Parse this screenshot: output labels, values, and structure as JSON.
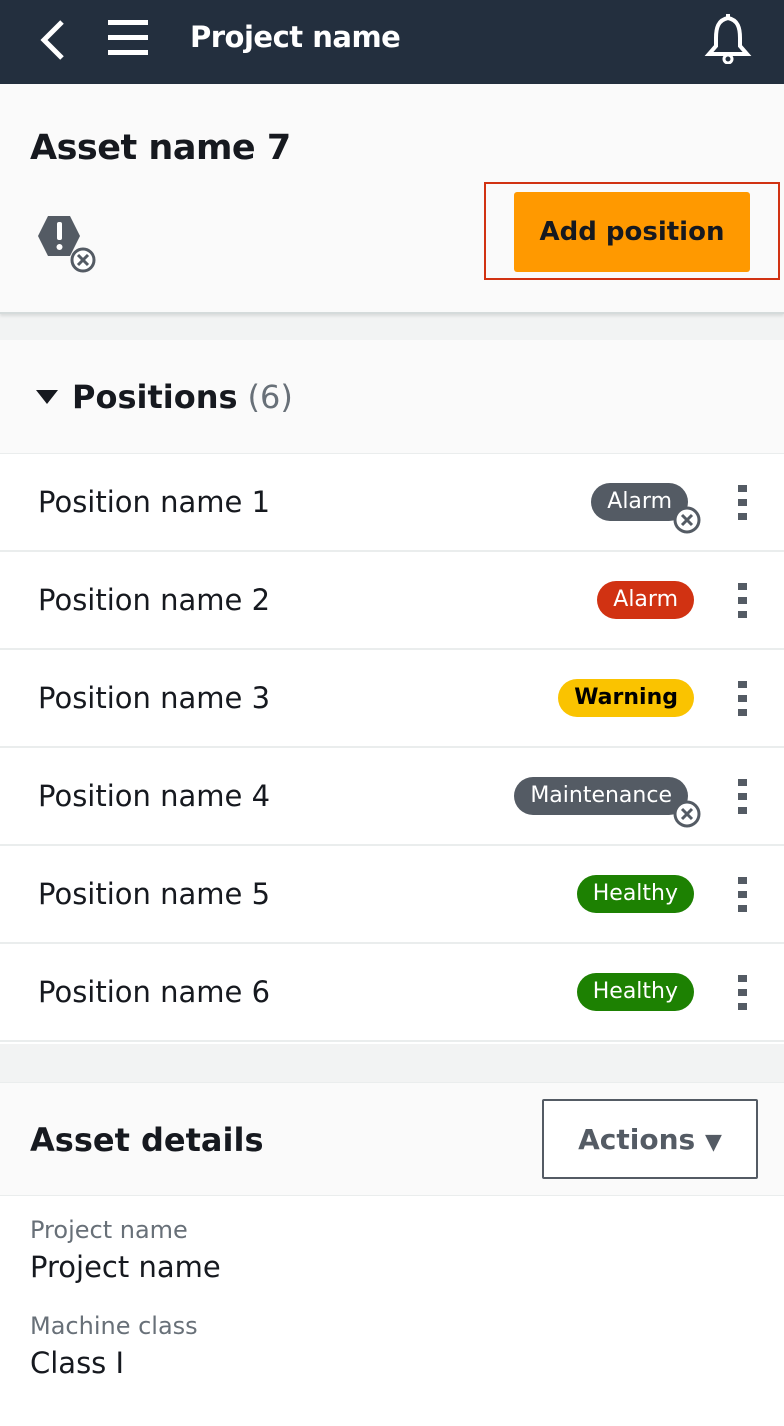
{
  "topbar": {
    "title": "Project name"
  },
  "header": {
    "asset_name": "Asset name 7",
    "add_button": "Add position",
    "status_icon": "alert-disabled-icon"
  },
  "positions": {
    "title": "Positions",
    "count": "(6)",
    "items": [
      {
        "name": "Position name 1",
        "status": "Alarm",
        "color": "#545b64",
        "disabled": true
      },
      {
        "name": "Position name 2",
        "status": "Alarm",
        "color": "#d13212",
        "disabled": false
      },
      {
        "name": "Position name 3",
        "status": "Warning",
        "color": "#fac300",
        "disabled": false
      },
      {
        "name": "Position name 4",
        "status": "Maintenance",
        "color": "#545b64",
        "disabled": true
      },
      {
        "name": "Position name 5",
        "status": "Healthy",
        "color": "#1d8102",
        "disabled": false
      },
      {
        "name": "Position name 6",
        "status": "Healthy",
        "color": "#1d8102",
        "disabled": false
      }
    ]
  },
  "details": {
    "title": "Asset details",
    "actions": "Actions",
    "fields": [
      {
        "label": "Project name",
        "value": "Project name"
      },
      {
        "label": "Machine class",
        "value": "Class I"
      }
    ]
  }
}
